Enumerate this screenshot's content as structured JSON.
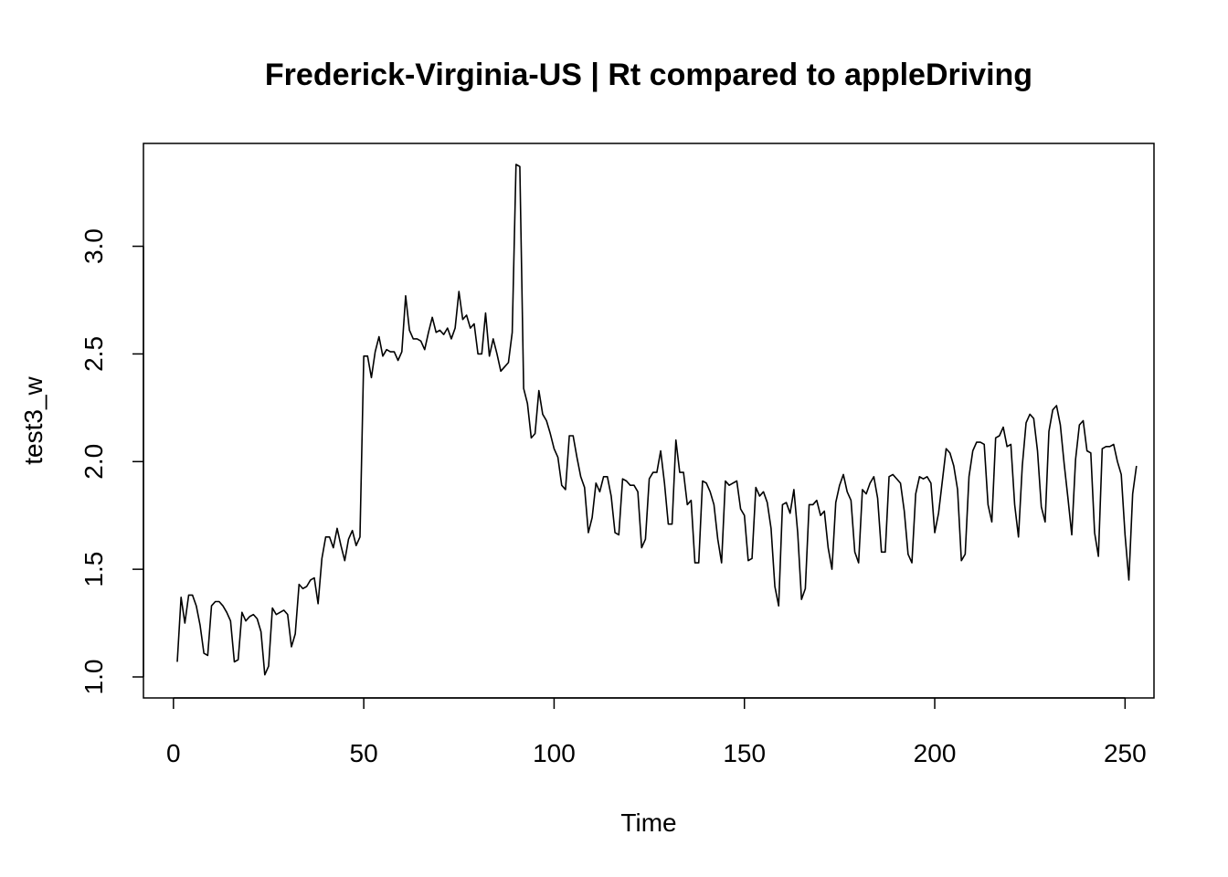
{
  "chart_data": {
    "type": "line",
    "title": "Frederick-Virginia-US | Rt compared to appleDriving",
    "xlabel": "Time",
    "ylabel": "test3_w",
    "xlim": [
      1,
      248
    ],
    "ylim": [
      1.0,
      3.38
    ],
    "x_ticks": [
      0,
      50,
      100,
      150,
      200,
      250
    ],
    "x_tick_labels": [
      "0",
      "50",
      "100",
      "150",
      "200",
      "250"
    ],
    "y_ticks": [
      1.0,
      1.5,
      2.0,
      2.5,
      3.0
    ],
    "y_tick_labels": [
      "1.0",
      "1.5",
      "2.0",
      "2.5",
      "3.0"
    ],
    "grid": false,
    "line_color": "#000000",
    "x_start": 1,
    "series": [
      {
        "values": [
          1.07,
          1.37,
          1.25,
          1.38,
          1.38,
          1.33,
          1.24,
          1.11,
          1.1,
          1.33,
          1.35,
          1.35,
          1.33,
          1.3,
          1.26,
          1.07,
          1.08,
          1.3,
          1.26,
          1.28,
          1.29,
          1.27,
          1.21,
          1.01,
          1.05,
          1.32,
          1.29,
          1.3,
          1.31,
          1.29,
          1.14,
          1.2,
          1.43,
          1.41,
          1.42,
          1.45,
          1.46,
          1.34,
          1.55,
          1.65,
          1.65,
          1.6,
          1.69,
          1.61,
          1.54,
          1.64,
          1.68,
          1.61,
          1.65,
          2.49,
          2.49,
          2.39,
          2.51,
          2.58,
          2.49,
          2.52,
          2.51,
          2.51,
          2.47,
          2.51,
          2.77,
          2.61,
          2.57,
          2.57,
          2.56,
          2.52,
          2.6,
          2.67,
          2.6,
          2.61,
          2.59,
          2.62,
          2.57,
          2.62,
          2.79,
          2.66,
          2.68,
          2.62,
          2.64,
          2.5,
          2.5,
          2.69,
          2.49,
          2.57,
          2.5,
          2.42,
          2.44,
          2.46,
          2.6,
          3.38,
          3.37,
          2.34,
          2.27,
          2.11,
          2.13,
          2.33,
          2.22,
          2.19,
          2.13,
          2.06,
          2.02,
          1.89,
          1.87,
          2.12,
          2.12,
          2.02,
          1.93,
          1.88,
          1.67,
          1.74,
          1.9,
          1.86,
          1.93,
          1.93,
          1.84,
          1.67,
          1.66,
          1.92,
          1.91,
          1.89,
          1.89,
          1.86,
          1.6,
          1.64,
          1.92,
          1.95,
          1.95,
          2.05,
          1.9,
          1.71,
          1.71,
          2.1,
          1.95,
          1.95,
          1.8,
          1.82,
          1.53,
          1.53,
          1.91,
          1.9,
          1.86,
          1.8,
          1.64,
          1.53,
          1.91,
          1.89,
          1.9,
          1.91,
          1.78,
          1.75,
          1.54,
          1.55,
          1.88,
          1.84,
          1.86,
          1.81,
          1.69,
          1.42,
          1.33,
          1.8,
          1.81,
          1.76,
          1.87,
          1.67,
          1.36,
          1.41,
          1.8,
          1.8,
          1.82,
          1.75,
          1.77,
          1.6,
          1.5,
          1.81,
          1.89,
          1.94,
          1.86,
          1.82,
          1.58,
          1.53,
          1.87,
          1.85,
          1.9,
          1.93,
          1.83,
          1.58,
          1.58,
          1.93,
          1.94,
          1.92,
          1.9,
          1.77,
          1.57,
          1.53,
          1.85,
          1.93,
          1.92,
          1.93,
          1.9,
          1.67,
          1.76,
          1.91,
          2.06,
          2.04,
          1.98,
          1.87,
          1.54,
          1.57,
          1.93,
          2.05,
          2.09,
          2.09,
          2.08,
          1.8,
          1.72,
          2.11,
          2.12,
          2.16,
          2.07,
          2.08,
          1.8,
          1.65,
          1.98,
          2.18,
          2.22,
          2.2,
          2.05,
          1.79,
          1.72,
          2.14,
          2.24,
          2.26,
          2.17,
          1.99,
          1.83,
          1.66,
          2.01,
          2.17,
          2.19,
          2.05,
          2.04,
          1.67,
          1.56,
          2.06,
          2.07,
          2.07,
          2.08,
          2.0,
          1.94,
          1.66,
          1.45,
          1.85,
          1.98
        ]
      }
    ]
  }
}
